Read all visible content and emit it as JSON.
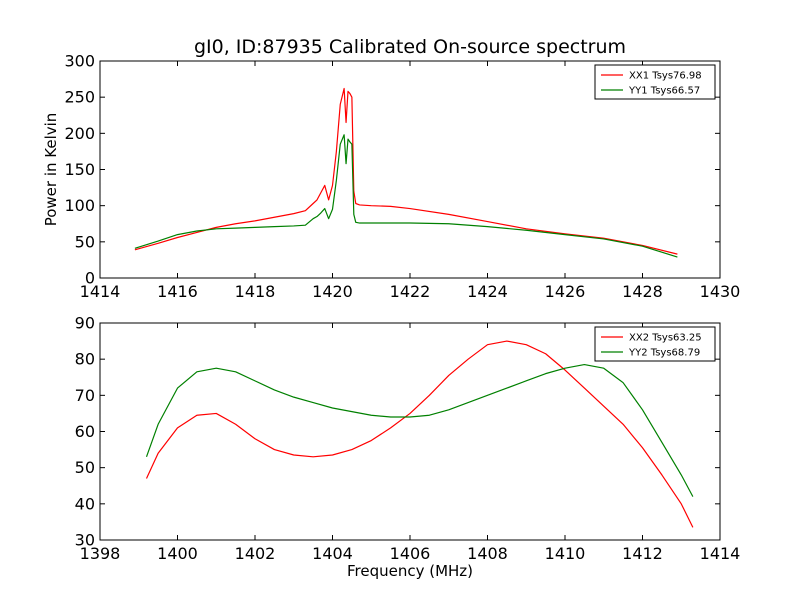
{
  "title": "gI0, ID:87935 Calibrated On-source spectrum",
  "chart_data": [
    {
      "type": "line",
      "ylabel": "Power in Kelvin",
      "xlabel": "",
      "xlim": [
        1414,
        1430
      ],
      "ylim": [
        0,
        300
      ],
      "xticks": [
        "1414",
        "1416",
        "1418",
        "1420",
        "1422",
        "1424",
        "1426",
        "1428",
        "1430"
      ],
      "yticks": [
        "0",
        "50",
        "100",
        "150",
        "200",
        "250",
        "300"
      ],
      "legend_position": "top-right",
      "series": [
        {
          "name": "XX1 Tsys76.98",
          "color": "#ff0000",
          "x": [
            1414.9,
            1415.5,
            1416.0,
            1416.5,
            1417.0,
            1417.5,
            1418.0,
            1418.5,
            1419.0,
            1419.3,
            1419.5,
            1419.6,
            1419.7,
            1419.8,
            1419.9,
            1420.0,
            1420.1,
            1420.2,
            1420.3,
            1420.35,
            1420.4,
            1420.45,
            1420.5,
            1420.55,
            1420.6,
            1420.7,
            1421.0,
            1421.5,
            1422.0,
            1423.0,
            1424.0,
            1425.0,
            1426.0,
            1427.0,
            1428.0,
            1428.9
          ],
          "y": [
            39,
            48,
            56,
            63,
            70,
            75,
            79,
            84,
            89,
            93,
            103,
            108,
            118,
            128,
            108,
            128,
            175,
            240,
            262,
            215,
            258,
            255,
            250,
            120,
            103,
            101,
            100,
            99,
            96,
            88,
            78,
            68,
            61,
            55,
            45,
            33
          ]
        },
        {
          "name": "YY1 Tsys66.57",
          "color": "#008000",
          "x": [
            1414.9,
            1415.5,
            1416.0,
            1416.5,
            1417.0,
            1417.5,
            1418.0,
            1418.5,
            1419.0,
            1419.3,
            1419.5,
            1419.6,
            1419.7,
            1419.8,
            1419.9,
            1420.0,
            1420.1,
            1420.2,
            1420.3,
            1420.35,
            1420.4,
            1420.45,
            1420.5,
            1420.55,
            1420.6,
            1420.7,
            1421.0,
            1421.5,
            1422.0,
            1423.0,
            1424.0,
            1425.0,
            1426.0,
            1427.0,
            1428.0,
            1428.9
          ],
          "y": [
            41,
            51,
            60,
            65,
            68,
            69,
            70,
            71,
            72,
            73,
            82,
            85,
            90,
            96,
            82,
            95,
            135,
            185,
            198,
            158,
            192,
            188,
            185,
            88,
            77,
            76,
            76,
            76,
            76,
            75,
            71,
            66,
            60,
            54,
            44,
            29
          ]
        }
      ]
    },
    {
      "type": "line",
      "ylabel": "",
      "xlabel": "Frequency (MHz)",
      "xlim": [
        1398,
        1414
      ],
      "ylim": [
        30,
        90
      ],
      "xticks": [
        "1398",
        "1400",
        "1402",
        "1404",
        "1406",
        "1408",
        "1410",
        "1412",
        "1414"
      ],
      "yticks": [
        "30",
        "40",
        "50",
        "60",
        "70",
        "80",
        "90"
      ],
      "legend_position": "top-right",
      "series": [
        {
          "name": "XX2 Tsys63.25",
          "color": "#ff0000",
          "x": [
            1399.2,
            1399.5,
            1400.0,
            1400.5,
            1401.0,
            1401.5,
            1402.0,
            1402.5,
            1403.0,
            1403.5,
            1404.0,
            1404.5,
            1405.0,
            1405.5,
            1406.0,
            1406.5,
            1407.0,
            1407.5,
            1408.0,
            1408.5,
            1409.0,
            1409.5,
            1410.0,
            1410.5,
            1411.0,
            1411.5,
            1412.0,
            1412.5,
            1413.0,
            1413.3
          ],
          "y": [
            47,
            54,
            61,
            64.5,
            65,
            62,
            58,
            55,
            53.5,
            53,
            53.5,
            55,
            57.5,
            61,
            65,
            70,
            75.5,
            80,
            84,
            85,
            84,
            81.5,
            77,
            72,
            67,
            62,
            55.5,
            48,
            40,
            33.5
          ]
        },
        {
          "name": "YY2 Tsys68.79",
          "color": "#008000",
          "x": [
            1399.2,
            1399.5,
            1400.0,
            1400.5,
            1401.0,
            1401.5,
            1402.0,
            1402.5,
            1403.0,
            1403.5,
            1404.0,
            1404.5,
            1405.0,
            1405.5,
            1406.0,
            1406.5,
            1407.0,
            1407.5,
            1408.0,
            1408.5,
            1409.0,
            1409.5,
            1410.0,
            1410.5,
            1411.0,
            1411.5,
            1412.0,
            1412.5,
            1413.0,
            1413.3
          ],
          "y": [
            53,
            62,
            72,
            76.5,
            77.5,
            76.5,
            74,
            71.5,
            69.5,
            68,
            66.5,
            65.5,
            64.5,
            64,
            64,
            64.5,
            66,
            68,
            70,
            72,
            74,
            76,
            77.5,
            78.5,
            77.5,
            73.5,
            66,
            57,
            48,
            42
          ]
        }
      ]
    }
  ]
}
